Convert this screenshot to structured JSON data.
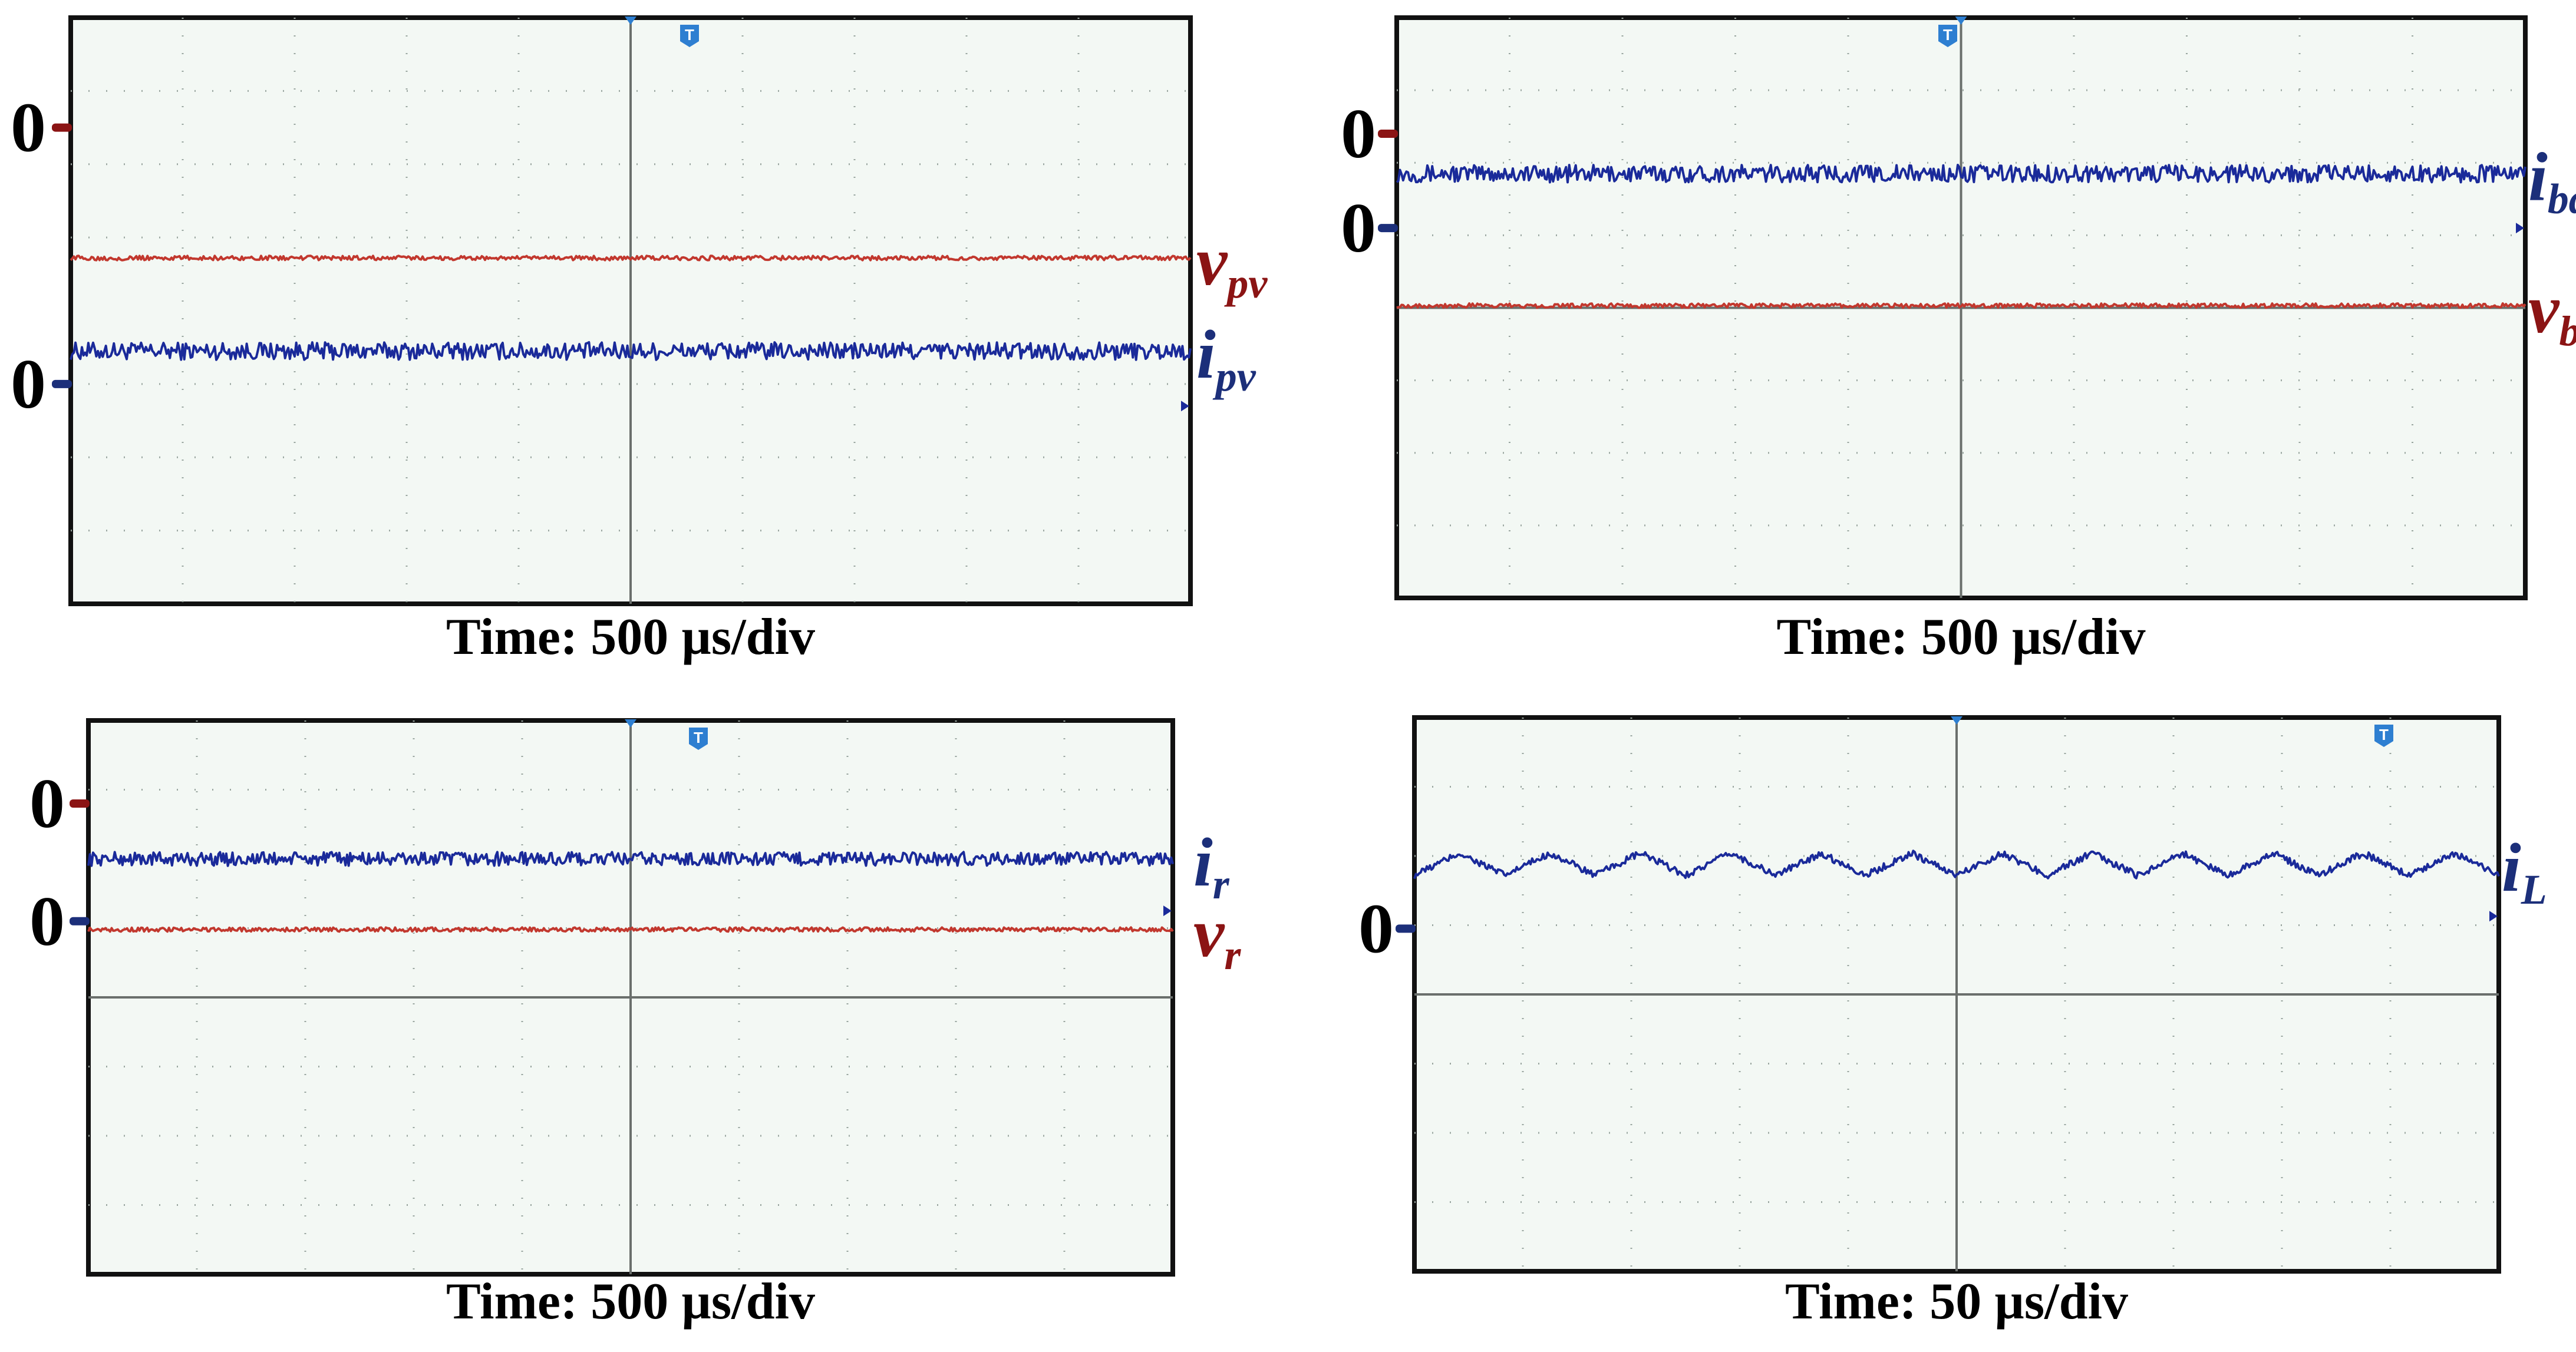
{
  "colors": {
    "current_trace": "#1a2a9a",
    "voltage_trace": "#c2382e",
    "current_label": "#1c2f7a",
    "voltage_label": "#8b1414",
    "trigger_marker": "#2e7fd1"
  },
  "trigger_icon": {
    "name": "trigger-T-icon",
    "text": "T"
  },
  "chart_data": [
    {
      "type": "line",
      "caption": "Time: 500 µs/div",
      "time_per_div_us": 500,
      "x_divisions": 10,
      "y_divisions": 8,
      "grid": true,
      "zero_label": "0",
      "series": [
        {
          "name_main": "i",
          "name_sub": "pv",
          "kind": "current",
          "zero_div": 3,
          "level_div": 3.45,
          "noise": 0.12,
          "shape": "dc"
        },
        {
          "name_main": "v",
          "name_sub": "pv",
          "kind": "voltage",
          "zero_div": 6.5,
          "level_div": 4.72,
          "noise": 0.03,
          "shape": "dc"
        }
      ]
    },
    {
      "type": "line",
      "caption": "Time: 500 µs/div",
      "time_per_div_us": 500,
      "x_divisions": 10,
      "y_divisions": 8,
      "grid": true,
      "zero_label": "0",
      "series": [
        {
          "name_main": "i",
          "name_sub": "bd",
          "kind": "current",
          "zero_div": 5.1,
          "level_div": 5.85,
          "noise": 0.12,
          "shape": "dc"
        },
        {
          "name_main": "v",
          "name_sub": "b",
          "kind": "voltage",
          "zero_div": 6.4,
          "level_div": 4.03,
          "noise": 0.03,
          "shape": "dc"
        }
      ]
    },
    {
      "type": "line",
      "caption": "Time: 500 µs/div",
      "time_per_div_us": 500,
      "x_divisions": 10,
      "y_divisions": 8,
      "grid": true,
      "zero_label": "0",
      "series": [
        {
          "name_main": "i",
          "name_sub": "r",
          "kind": "current",
          "zero_div": 5.1,
          "level_div": 6.0,
          "noise": 0.1,
          "shape": "dc"
        },
        {
          "name_main": "v",
          "name_sub": "r",
          "kind": "voltage",
          "zero_div": 6.8,
          "level_div": 4.98,
          "noise": 0.03,
          "shape": "dc"
        }
      ]
    },
    {
      "type": "line",
      "caption": "Time: 50 µs/div",
      "time_per_div_us": 50,
      "x_divisions": 10,
      "y_divisions": 8,
      "grid": true,
      "zero_label": "0",
      "series": [
        {
          "name_main": "i",
          "name_sub": "L",
          "kind": "current",
          "zero_div": 4.95,
          "level_div": 5.88,
          "noise": 0.05,
          "shape": "triangle",
          "ripple_div": 0.32,
          "periods": 12
        }
      ]
    }
  ]
}
